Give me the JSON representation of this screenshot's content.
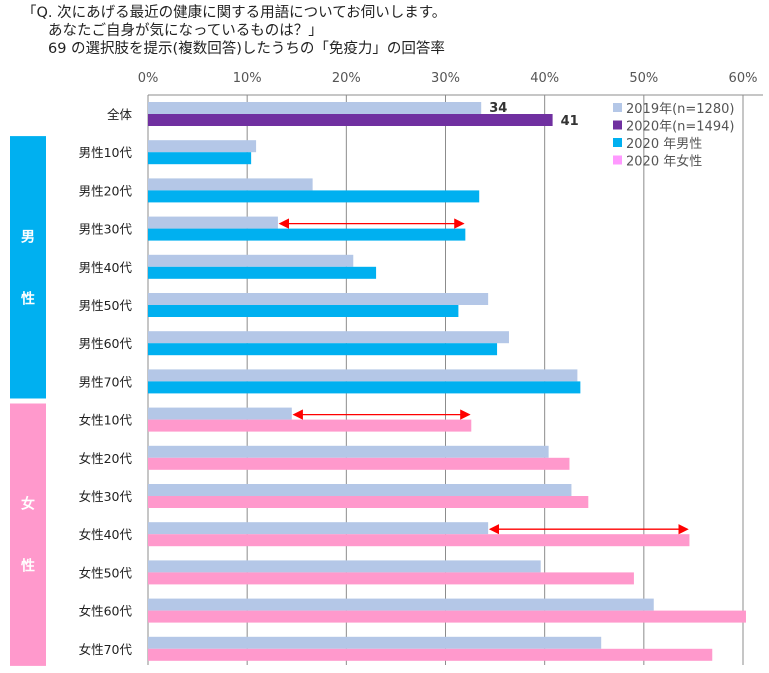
{
  "chart_data": {
    "type": "bar",
    "orientation": "horizontal",
    "title_lines": [
      "「Q. 次にあげる最近の健康に関する用語についてお伺いします。",
      "あなたご自身が気になっているものは？」",
      "69 の選択肢を提示(複数回答)したうちの「免疫力」の回答率"
    ],
    "xlim": [
      0,
      60
    ],
    "x_ticks": [
      "0%",
      "10%",
      "20%",
      "30%",
      "40%",
      "50%",
      "60%"
    ],
    "grid": true,
    "legend_placement": "top-right",
    "legend": [
      {
        "label": "2019年(n=1280)",
        "color": "#b4c7e7"
      },
      {
        "label": "2020年(n=1494)",
        "color": "#7030a0"
      },
      {
        "label": "2020 年男性",
        "color": "#00b0f0"
      },
      {
        "label": "2020 年女性",
        "color": "#ff99ff"
      }
    ],
    "groups": [
      {
        "label": "男\n性",
        "color": "#00b0f0",
        "chars": [
          "男",
          "性"
        ]
      },
      {
        "label": "女\n性",
        "color": "#ff99cc",
        "chars": [
          "女",
          "性"
        ]
      }
    ],
    "categories": [
      "全体",
      "男性10代",
      "男性20代",
      "男性30代",
      "男性40代",
      "男性50代",
      "男性60代",
      "男性70代",
      "女性10代",
      "女性20代",
      "女性30代",
      "女性40代",
      "女性50代",
      "女性60代",
      "女性70代"
    ],
    "series": [
      {
        "name": "2019年(n=1280)",
        "color": "#b4c7e7",
        "values": [
          33.6,
          10.9,
          16.6,
          13.1,
          20.7,
          34.3,
          36.4,
          43.3,
          14.5,
          40.4,
          42.7,
          34.3,
          39.6,
          51.0,
          45.7
        ]
      },
      {
        "name": "2020",
        "colors": [
          "#7030a0",
          "#00b0f0",
          "#00b0f0",
          "#00b0f0",
          "#00b0f0",
          "#00b0f0",
          "#00b0f0",
          "#00b0f0",
          "#ff99cc",
          "#ff99cc",
          "#ff99cc",
          "#ff99cc",
          "#ff99cc",
          "#ff99cc",
          "#ff99cc"
        ],
        "values": [
          40.8,
          10.4,
          33.4,
          32.0,
          23.0,
          31.3,
          35.2,
          43.6,
          32.6,
          42.5,
          44.4,
          54.6,
          49.0,
          60.3,
          56.9
        ]
      }
    ],
    "data_labels": [
      {
        "category": "全体",
        "labels": [
          "34",
          "41"
        ]
      }
    ],
    "annotations": [
      {
        "type": "double-arrow",
        "category": "男性30代",
        "color": "#ff0000"
      },
      {
        "type": "double-arrow",
        "category": "女性10代",
        "color": "#ff0000"
      },
      {
        "type": "double-arrow",
        "category": "女性40代",
        "color": "#ff0000"
      }
    ]
  }
}
